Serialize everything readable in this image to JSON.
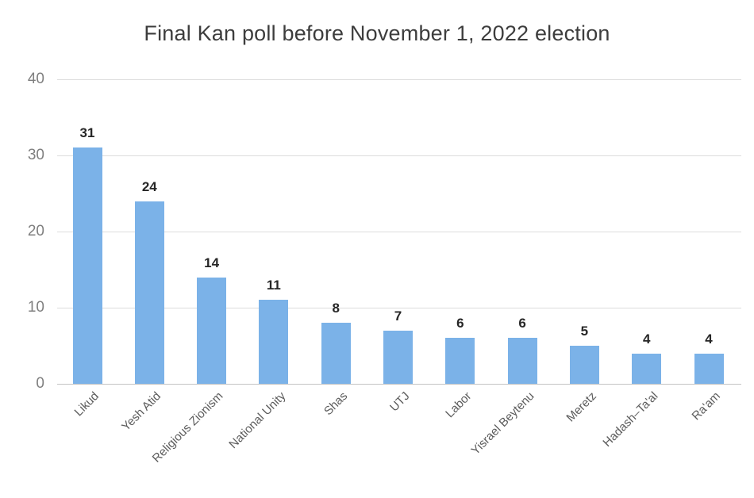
{
  "chart_data": {
    "type": "bar",
    "title": "Final Kan poll before November 1, 2022 election",
    "categories": [
      "Likud",
      "Yesh Atid",
      "Religious Zionism",
      "National Unity",
      "Shas",
      "UTJ",
      "Labor",
      "Yisrael Beytenu",
      "Meretz",
      "Hadash–Ta'al",
      "Ra'am"
    ],
    "values": [
      31,
      24,
      14,
      11,
      8,
      7,
      6,
      6,
      5,
      4,
      4
    ],
    "value_labels": [
      "31",
      "24",
      "14",
      "11",
      "8",
      "7",
      "6",
      "6",
      "5",
      "4",
      "4"
    ],
    "xlabel": "",
    "ylabel": "",
    "ylim": [
      0,
      40
    ],
    "yticks": [
      0,
      10,
      20,
      30,
      40
    ],
    "grid": true,
    "legend": false,
    "colors": {
      "bar": "#7bb2e8",
      "gridline": "#dcdcdc",
      "axis_line": "#c4c4c4",
      "ytick_label": "#7f7f7f",
      "category_label": "#5c5c5c",
      "value_label": "#262626",
      "title": "#3d3d3d",
      "background": "#ffffff"
    }
  }
}
